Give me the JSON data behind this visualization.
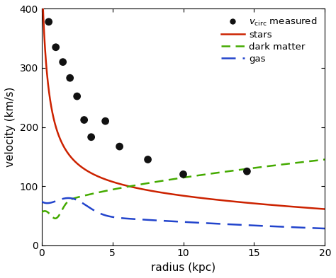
{
  "title": "",
  "xlabel": "radius (kpc)",
  "ylabel": "velocity (km/s)",
  "xlim": [
    0,
    20
  ],
  "ylim": [
    0,
    400
  ],
  "xticks": [
    0,
    5,
    10,
    15,
    20
  ],
  "yticks": [
    0,
    100,
    200,
    300,
    400
  ],
  "measured_r": [
    0.5,
    1.0,
    1.5,
    2.0,
    2.5,
    3.0,
    3.5,
    4.5,
    5.5,
    7.5,
    10.0,
    14.5
  ],
  "measured_v": [
    378,
    335,
    310,
    283,
    252,
    212,
    183,
    210,
    167,
    145,
    120,
    125
  ],
  "stars_color": "#cc2200",
  "dark_matter_color": "#44aa00",
  "gas_color": "#2244cc",
  "measured_color": "#111111",
  "bg_color": "#ffffff"
}
